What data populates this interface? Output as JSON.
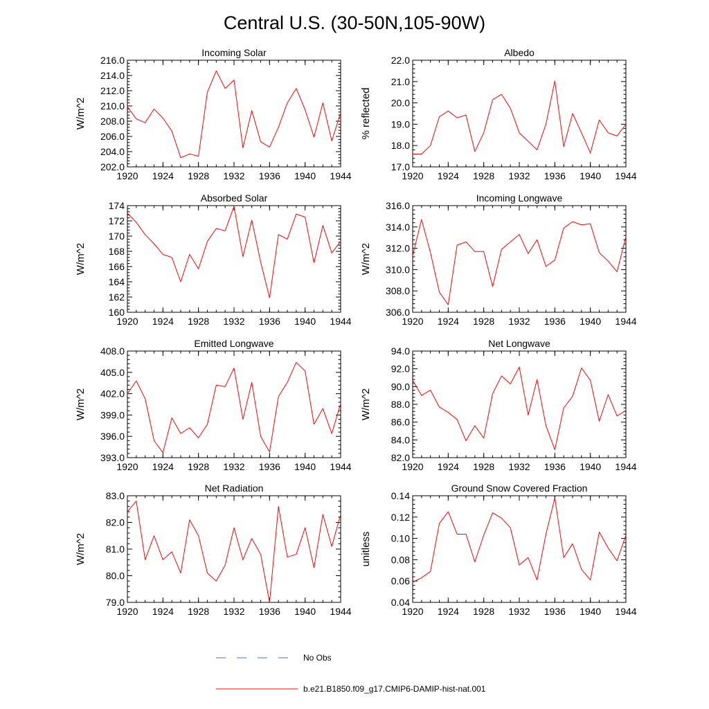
{
  "figure": {
    "title": "Central U.S. (30-50N,105-90W)"
  },
  "legend": {
    "items": [
      {
        "label": "No Obs",
        "color": "#4a6fd4",
        "style": "dashed"
      },
      {
        "label": "b.e21.B1850.f09_g17.CMIP6-DAMIP-hist-nat.001",
        "color": "#ff0000",
        "style": "solid"
      }
    ]
  },
  "chart_data": [
    {
      "type": "line",
      "title": "Incoming Solar",
      "ylabel": "W/m^2",
      "xlim": [
        1920,
        1944
      ],
      "ylim": [
        202,
        216
      ],
      "xticks": [
        "1920",
        "1924",
        "1928",
        "1932",
        "1936",
        "1940",
        "1944"
      ],
      "yticks": [
        "202.0",
        "204.0",
        "206.0",
        "208.0",
        "210.0",
        "212.0",
        "214.0",
        "216.0"
      ],
      "x": [
        1920,
        1921,
        1922,
        1923,
        1924,
        1925,
        1926,
        1927,
        1928,
        1929,
        1930,
        1931,
        1932,
        1933,
        1934,
        1935,
        1936,
        1937,
        1938,
        1939,
        1940,
        1941,
        1942,
        1943,
        1944
      ],
      "series": [
        {
          "color": "#ff0000",
          "values": [
            209.9,
            208.3,
            207.8,
            209.6,
            208.4,
            206.7,
            203.2,
            203.7,
            203.4,
            211.8,
            214.6,
            212.3,
            213.4,
            204.5,
            209.4,
            205.3,
            204.6,
            207.2,
            210.4,
            212.3,
            209.5,
            205.9,
            210.4,
            205.4,
            209.1
          ]
        }
      ]
    },
    {
      "type": "line",
      "title": "Albedo",
      "ylabel": "% reflected",
      "xlim": [
        1920,
        1944
      ],
      "ylim": [
        17,
        22
      ],
      "xticks": [
        "1920",
        "1924",
        "1928",
        "1932",
        "1936",
        "1940",
        "1944"
      ],
      "yticks": [
        "17.0",
        "18.0",
        "19.0",
        "20.0",
        "21.0",
        "22.0"
      ],
      "x": [
        1920,
        1921,
        1922,
        1923,
        1924,
        1925,
        1926,
        1927,
        1928,
        1929,
        1930,
        1931,
        1932,
        1933,
        1934,
        1935,
        1936,
        1937,
        1938,
        1939,
        1940,
        1941,
        1942,
        1943,
        1944
      ],
      "series": [
        {
          "color": "#ff0000",
          "values": [
            17.6,
            17.6,
            18.0,
            19.35,
            19.62,
            19.3,
            19.43,
            17.72,
            18.6,
            20.15,
            20.4,
            19.75,
            18.6,
            18.2,
            17.8,
            19.0,
            21.03,
            17.95,
            19.5,
            18.6,
            17.65,
            19.2,
            18.6,
            18.45,
            19.0
          ]
        }
      ]
    },
    {
      "type": "line",
      "title": "Absorbed Solar",
      "ylabel": "W/m^2",
      "xlim": [
        1920,
        1944
      ],
      "ylim": [
        160,
        174
      ],
      "xticks": [
        "1920",
        "1924",
        "1928",
        "1932",
        "1936",
        "1940",
        "1944"
      ],
      "yticks": [
        "160",
        "162",
        "164",
        "166",
        "168",
        "170",
        "172",
        "174"
      ],
      "x": [
        1920,
        1921,
        1922,
        1923,
        1924,
        1925,
        1926,
        1927,
        1928,
        1929,
        1930,
        1931,
        1932,
        1933,
        1934,
        1935,
        1936,
        1937,
        1938,
        1939,
        1940,
        1941,
        1942,
        1943,
        1944
      ],
      "series": [
        {
          "color": "#ff0000",
          "values": [
            173.0,
            171.8,
            170.2,
            169.0,
            167.6,
            167.2,
            164.0,
            167.6,
            165.7,
            169.3,
            171.0,
            170.7,
            173.9,
            167.3,
            172.1,
            166.6,
            161.9,
            170.2,
            169.6,
            172.9,
            172.5,
            166.5,
            171.4,
            167.8,
            169.3
          ]
        }
      ]
    },
    {
      "type": "line",
      "title": "Incoming Longwave",
      "ylabel": "W/m^2",
      "xlim": [
        1920,
        1944
      ],
      "ylim": [
        306,
        316
      ],
      "xticks": [
        "1920",
        "1924",
        "1928",
        "1932",
        "1936",
        "1940",
        "1944"
      ],
      "yticks": [
        "306.0",
        "308.0",
        "310.0",
        "312.0",
        "314.0",
        "316.0"
      ],
      "x": [
        1920,
        1921,
        1922,
        1923,
        1924,
        1925,
        1926,
        1927,
        1928,
        1929,
        1930,
        1931,
        1932,
        1933,
        1934,
        1935,
        1936,
        1937,
        1938,
        1939,
        1940,
        1941,
        1942,
        1943,
        1944
      ],
      "series": [
        {
          "color": "#ff0000",
          "values": [
            311.3,
            314.7,
            311.6,
            307.9,
            306.7,
            312.3,
            312.6,
            311.7,
            311.7,
            308.4,
            311.9,
            312.6,
            313.3,
            311.5,
            312.8,
            310.3,
            310.9,
            313.9,
            314.5,
            314.2,
            314.3,
            311.6,
            310.8,
            309.8,
            313.1
          ]
        }
      ]
    },
    {
      "type": "line",
      "title": "Emitted Longwave",
      "ylabel": "W/m^2",
      "xlim": [
        1920,
        1944
      ],
      "ylim": [
        393,
        408
      ],
      "xticks": [
        "1920",
        "1924",
        "1928",
        "1932",
        "1936",
        "1940",
        "1944"
      ],
      "yticks": [
        "393.0",
        "396.0",
        "399.0",
        "402.0",
        "405.0",
        "408.0"
      ],
      "x": [
        1920,
        1921,
        1922,
        1923,
        1924,
        1925,
        1926,
        1927,
        1928,
        1929,
        1930,
        1931,
        1932,
        1933,
        1934,
        1935,
        1936,
        1937,
        1938,
        1939,
        1940,
        1941,
        1942,
        1943,
        1944
      ],
      "series": [
        {
          "color": "#ff0000",
          "values": [
            402.0,
            403.8,
            401.3,
            395.4,
            393.7,
            398.6,
            396.4,
            397.2,
            395.8,
            397.7,
            403.2,
            403.0,
            405.6,
            398.4,
            403.6,
            396.0,
            393.8,
            401.6,
            403.6,
            406.4,
            405.2,
            397.7,
            399.9,
            396.4,
            400.6
          ]
        }
      ]
    },
    {
      "type": "line",
      "title": "Net Longwave",
      "ylabel": "W/m^2",
      "xlim": [
        1920,
        1944
      ],
      "ylim": [
        82,
        94
      ],
      "xticks": [
        "1920",
        "1924",
        "1928",
        "1932",
        "1936",
        "1940",
        "1944"
      ],
      "yticks": [
        "82.0",
        "84.0",
        "86.0",
        "88.0",
        "90.0",
        "92.0",
        "94.0"
      ],
      "x": [
        1920,
        1921,
        1922,
        1923,
        1924,
        1925,
        1926,
        1927,
        1928,
        1929,
        1930,
        1931,
        1932,
        1933,
        1934,
        1935,
        1936,
        1937,
        1938,
        1939,
        1940,
        1941,
        1942,
        1943,
        1944
      ],
      "series": [
        {
          "color": "#ff0000",
          "values": [
            90.7,
            89.0,
            89.6,
            87.7,
            87.1,
            86.3,
            83.9,
            85.6,
            84.2,
            89.2,
            91.2,
            90.3,
            92.2,
            86.8,
            90.8,
            85.6,
            82.9,
            87.6,
            88.9,
            92.1,
            90.7,
            86.1,
            89.1,
            86.7,
            87.3
          ]
        }
      ]
    },
    {
      "type": "line",
      "title": "Net Radiation",
      "ylabel": "W/m^2",
      "xlim": [
        1920,
        1944
      ],
      "ylim": [
        79,
        83
      ],
      "xticks": [
        "1920",
        "1924",
        "1928",
        "1932",
        "1936",
        "1940",
        "1944"
      ],
      "yticks": [
        "79.0",
        "80.0",
        "81.0",
        "82.0",
        "83.0"
      ],
      "x": [
        1920,
        1921,
        1922,
        1923,
        1924,
        1925,
        1926,
        1927,
        1928,
        1929,
        1930,
        1931,
        1932,
        1933,
        1934,
        1935,
        1936,
        1937,
        1938,
        1939,
        1940,
        1941,
        1942,
        1943,
        1944
      ],
      "series": [
        {
          "color": "#ff0000",
          "values": [
            82.4,
            82.8,
            80.6,
            81.5,
            80.6,
            80.9,
            80.1,
            82.1,
            81.5,
            80.1,
            79.8,
            80.4,
            81.8,
            80.6,
            81.4,
            80.8,
            79.0,
            82.6,
            80.7,
            80.8,
            81.8,
            80.3,
            82.3,
            81.1,
            82.3
          ]
        }
      ]
    },
    {
      "type": "line",
      "title": "Ground Snow Covered Fraction",
      "ylabel": "unitless",
      "xlim": [
        1920,
        1944
      ],
      "ylim": [
        0.04,
        0.14
      ],
      "xticks": [
        "1920",
        "1924",
        "1928",
        "1932",
        "1936",
        "1940",
        "1944"
      ],
      "yticks": [
        "0.04",
        "0.06",
        "0.08",
        "0.10",
        "0.12",
        "0.14"
      ],
      "x": [
        1920,
        1921,
        1922,
        1923,
        1924,
        1925,
        1926,
        1927,
        1928,
        1929,
        1930,
        1931,
        1932,
        1933,
        1934,
        1935,
        1936,
        1937,
        1938,
        1939,
        1940,
        1941,
        1942,
        1943,
        1944
      ],
      "series": [
        {
          "color": "#ff0000",
          "values": [
            0.059,
            0.063,
            0.069,
            0.114,
            0.125,
            0.104,
            0.104,
            0.078,
            0.103,
            0.124,
            0.119,
            0.11,
            0.075,
            0.082,
            0.061,
            0.104,
            0.138,
            0.082,
            0.095,
            0.071,
            0.061,
            0.106,
            0.091,
            0.079,
            0.103
          ]
        }
      ]
    }
  ]
}
